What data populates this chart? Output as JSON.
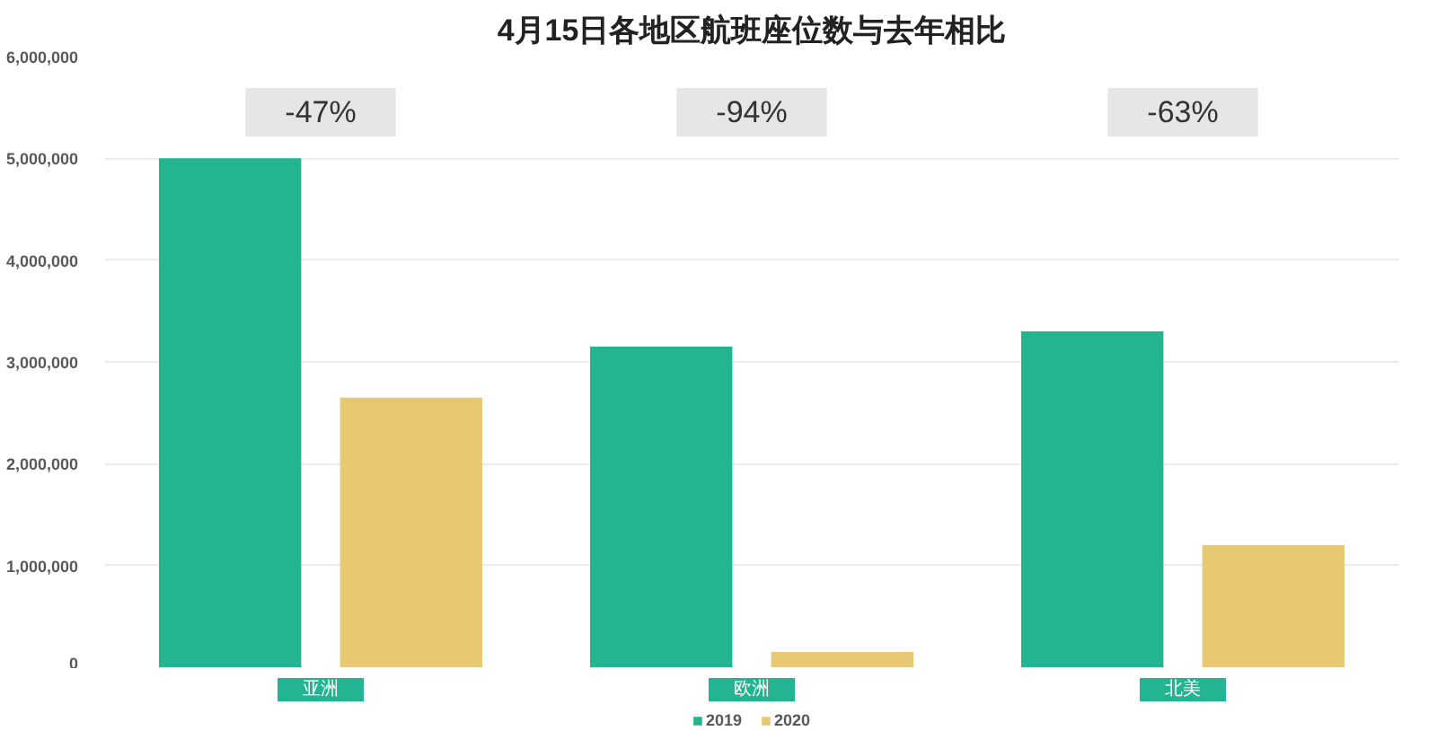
{
  "chart_data": {
    "type": "bar",
    "title": "4月15日各地区航班座位数与去年相比",
    "categories": [
      "亚洲",
      "欧洲",
      "北美"
    ],
    "series": [
      {
        "name": "2019",
        "color": "#23b592",
        "values": [
          5000000,
          3150000,
          3300000
        ]
      },
      {
        "name": "2020",
        "color": "#e9c874",
        "values": [
          2650000,
          150000,
          1200000
        ]
      }
    ],
    "ylim": [
      0,
      6000000
    ],
    "yticks": [
      0,
      {
        "value": 1000000,
        "label": "1,000,000"
      },
      {
        "value": 2000000,
        "label": "2,000,000"
      },
      {
        "value": 3000000,
        "label": "3,000,000"
      },
      {
        "value": 4000000,
        "label": "4,000,000"
      },
      {
        "value": 5000000,
        "label": "5,000,000"
      },
      {
        "value": 6000000,
        "label": "6,000,000"
      }
    ],
    "grid": "y",
    "legend": "bottom",
    "annotations": [
      "-47%",
      "-94%",
      "-63%"
    ]
  }
}
